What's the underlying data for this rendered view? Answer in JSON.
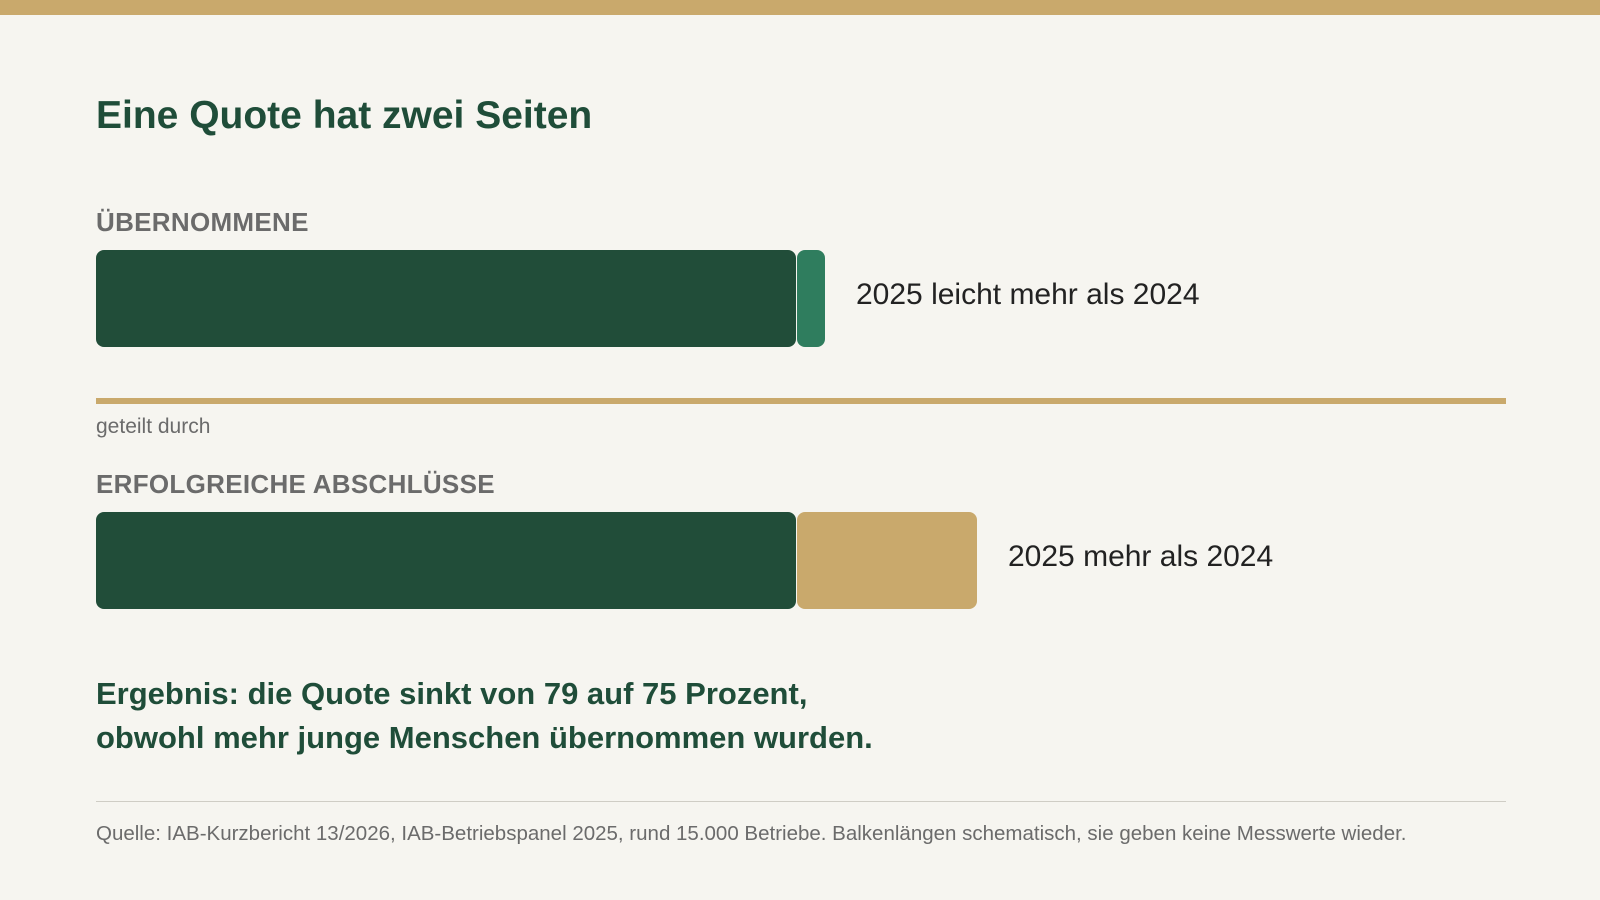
{
  "colors": {
    "accent_gold": "#c9a96c",
    "dark_green": "#214d39",
    "medium_green": "#2f7d5e",
    "background": "#f6f5f0",
    "title_green": "#1f4d39",
    "muted_text": "#6b6b6b"
  },
  "title": "Eine Quote hat zwei Seiten",
  "numerator": {
    "label": "ÜBERNOMMENE",
    "note": "2025 leicht mehr als 2024"
  },
  "divider_label": "geteilt durch",
  "denominator": {
    "label": "ERFOLGREICHE ABSCHLÜSSE",
    "note": "2025 mehr als 2024"
  },
  "result": {
    "line1": "Ergebnis: die Quote sinkt von 79 auf 75 Prozent,",
    "line2": "obwohl mehr junge Menschen übernommen wurden."
  },
  "source": "Quelle: IAB-Kurzbericht 13/2026, IAB-Betriebspanel 2025, rund 15.000 Betriebe. Balkenlängen schematisch, sie geben keine Messwerte wieder."
}
